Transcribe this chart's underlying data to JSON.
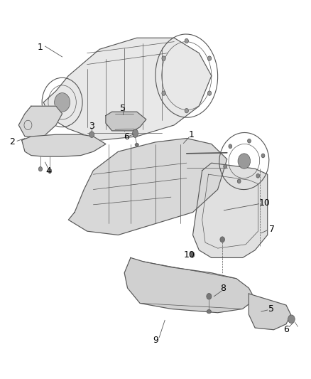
{
  "title": "",
  "bg_color": "#ffffff",
  "line_color": "#555555",
  "figsize": [
    4.38,
    5.33
  ],
  "dpi": 100,
  "font_size": 9,
  "label_color": "#000000"
}
